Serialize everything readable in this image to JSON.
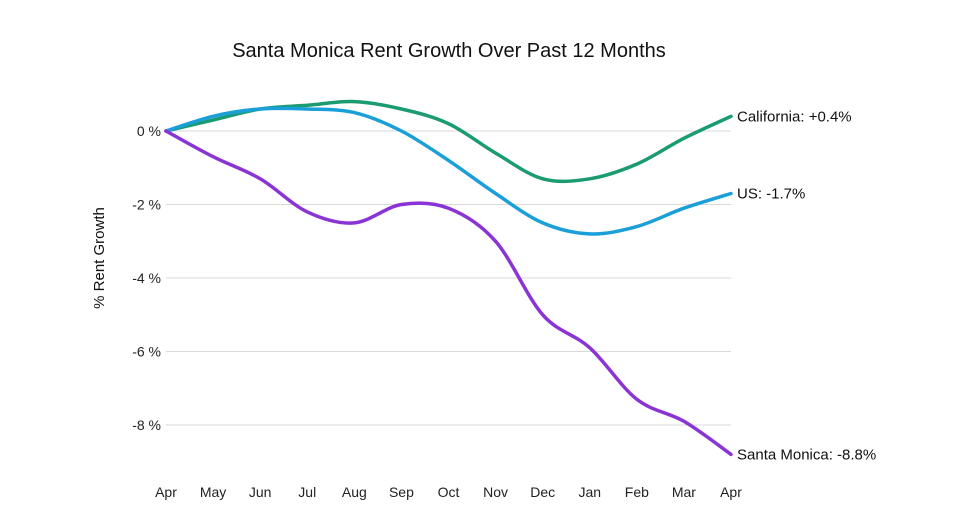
{
  "chart_data": {
    "type": "line",
    "title": "Santa Monica Rent Growth Over Past 12 Months",
    "xlabel": "",
    "ylabel": "% Rent Growth",
    "categories": [
      "Apr",
      "May",
      "Jun",
      "Jul",
      "Aug",
      "Sep",
      "Oct",
      "Nov",
      "Dec",
      "Jan",
      "Feb",
      "Mar",
      "Apr"
    ],
    "ylim": [
      -9.2,
      1.1
    ],
    "yticks": [
      0,
      -2,
      -4,
      -6,
      -8
    ],
    "ytick_labels": [
      "0 %",
      "-2 %",
      "-4 %",
      "-6 %",
      "-8 %"
    ],
    "grid": true,
    "legend": "end-of-line labels",
    "series": [
      {
        "name": "California",
        "end_label": "California: +0.4%",
        "color": "#1a9b72",
        "values": [
          0,
          0.3,
          0.6,
          0.7,
          0.8,
          0.6,
          0.2,
          -0.6,
          -1.3,
          -1.3,
          -0.9,
          -0.2,
          0.4
        ]
      },
      {
        "name": "US",
        "end_label": "US: -1.7%",
        "color": "#1b9fd8",
        "values": [
          0,
          0.4,
          0.6,
          0.6,
          0.5,
          0.0,
          -0.8,
          -1.7,
          -2.5,
          -2.8,
          -2.6,
          -2.1,
          -1.7
        ]
      },
      {
        "name": "Santa Monica",
        "end_label": "Santa Monica: -8.8%",
        "color": "#8a34d6",
        "values": [
          0,
          -0.7,
          -1.3,
          -2.2,
          -2.5,
          -2.0,
          -2.1,
          -3.0,
          -5.0,
          -5.9,
          -7.3,
          -7.9,
          -8.8
        ]
      }
    ]
  }
}
